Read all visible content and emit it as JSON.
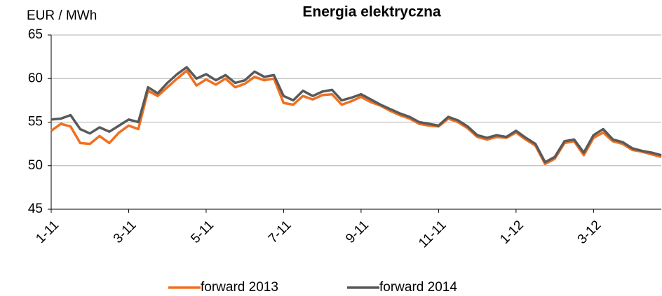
{
  "chart_data": {
    "type": "line",
    "title": "Energia elektryczna",
    "y_label": "EUR / MWh",
    "categories": [
      "1-11",
      null,
      null,
      null,
      null,
      null,
      null,
      null,
      "3-11",
      null,
      null,
      null,
      null,
      null,
      null,
      null,
      "5-11",
      null,
      null,
      null,
      null,
      null,
      null,
      null,
      "7-11",
      null,
      null,
      null,
      null,
      null,
      null,
      null,
      "9-11",
      null,
      null,
      null,
      null,
      null,
      null,
      null,
      "11-11",
      null,
      null,
      null,
      null,
      null,
      null,
      null,
      "1-12",
      null,
      null,
      null,
      null,
      null,
      null,
      null,
      "3-12",
      null,
      null,
      null,
      null,
      null,
      null,
      null
    ],
    "series": [
      {
        "name": "forward 2013",
        "color": "#f07020",
        "values": [
          54.0,
          54.8,
          54.5,
          52.6,
          52.5,
          53.4,
          52.6,
          53.8,
          54.6,
          54.2,
          58.6,
          58.0,
          59.0,
          60.0,
          60.9,
          59.2,
          59.9,
          59.3,
          60.0,
          59.0,
          59.4,
          60.2,
          59.8,
          60.0,
          57.2,
          57.0,
          58.0,
          57.6,
          58.1,
          58.2,
          57.0,
          57.4,
          57.9,
          57.3,
          56.9,
          56.3,
          55.8,
          55.4,
          54.8,
          54.6,
          54.5,
          55.4,
          55.0,
          54.3,
          53.3,
          53.0,
          53.3,
          53.2,
          53.8,
          53.0,
          52.3,
          50.2,
          50.8,
          52.6,
          52.8,
          51.2,
          53.2,
          53.8,
          52.8,
          52.5,
          51.8,
          51.6,
          51.3,
          51.0
        ]
      },
      {
        "name": "forward 2014",
        "color": "#595959",
        "values": [
          55.3,
          55.4,
          55.8,
          54.2,
          53.7,
          54.4,
          53.9,
          54.6,
          55.3,
          55.0,
          59.0,
          58.3,
          59.5,
          60.5,
          61.3,
          60.0,
          60.5,
          59.8,
          60.4,
          59.5,
          59.8,
          60.8,
          60.2,
          60.4,
          58.0,
          57.5,
          58.6,
          58.0,
          58.5,
          58.7,
          57.5,
          57.8,
          58.2,
          57.6,
          57.0,
          56.5,
          56.0,
          55.6,
          55.0,
          54.8,
          54.6,
          55.6,
          55.2,
          54.5,
          53.5,
          53.2,
          53.5,
          53.3,
          54.0,
          53.2,
          52.5,
          50.4,
          51.0,
          52.8,
          53.0,
          51.5,
          53.5,
          54.2,
          53.0,
          52.7,
          52.0,
          51.7,
          51.5,
          51.2
        ]
      }
    ],
    "ylim": [
      45,
      65
    ],
    "yticks": [
      45,
      50,
      55,
      60,
      65
    ],
    "grid": true,
    "legend": "bottom"
  }
}
